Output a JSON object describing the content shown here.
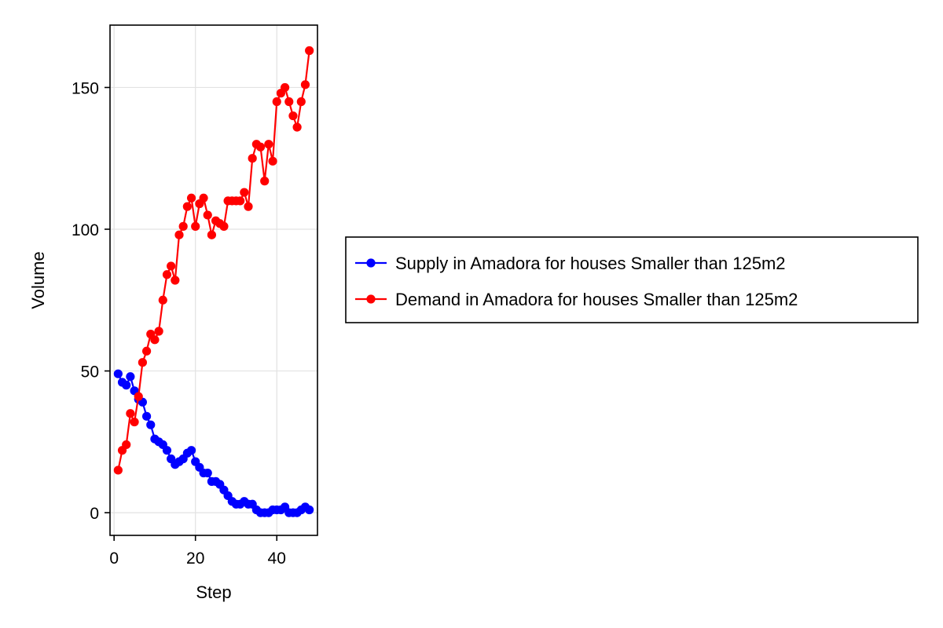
{
  "chart_data": {
    "type": "line",
    "title": "",
    "xlabel": "Step",
    "ylabel": "Volume",
    "xlim": [
      -1,
      50
    ],
    "ylim": [
      -8,
      172
    ],
    "x_ticks": [
      0,
      20,
      40
    ],
    "y_ticks": [
      0,
      50,
      100,
      150
    ],
    "grid": true,
    "legend_position": "right",
    "x": [
      1,
      2,
      3,
      4,
      5,
      6,
      7,
      8,
      9,
      10,
      11,
      12,
      13,
      14,
      15,
      16,
      17,
      18,
      19,
      20,
      21,
      22,
      23,
      24,
      25,
      26,
      27,
      28,
      29,
      30,
      31,
      32,
      33,
      34,
      35,
      36,
      37,
      38,
      39,
      40,
      41,
      42,
      43,
      44,
      45,
      46,
      47,
      48
    ],
    "series": [
      {
        "name": "Supply in Amadora for houses Smaller than 125m2",
        "color": "#0000ff",
        "marker": "circle",
        "values": [
          49,
          46,
          45,
          48,
          43,
          40,
          39,
          34,
          31,
          26,
          25,
          24,
          22,
          19,
          17,
          18,
          19,
          21,
          22,
          18,
          16,
          14,
          14,
          11,
          11,
          10,
          8,
          6,
          4,
          3,
          3,
          4,
          3,
          3,
          1,
          0,
          0,
          0,
          1,
          1,
          1,
          2,
          0,
          0,
          0,
          1,
          2,
          1
        ]
      },
      {
        "name": "Demand in Amadora for houses Smaller than 125m2",
        "color": "#ff0000",
        "marker": "circle",
        "values": [
          15,
          22,
          24,
          35,
          32,
          41,
          53,
          57,
          63,
          61,
          64,
          75,
          84,
          87,
          82,
          98,
          101,
          108,
          111,
          101,
          109,
          111,
          105,
          98,
          103,
          102,
          101,
          110,
          110,
          110,
          110,
          113,
          108,
          125,
          130,
          129,
          117,
          130,
          124,
          145,
          148,
          150,
          145,
          140,
          136,
          145,
          151,
          163
        ]
      }
    ]
  }
}
